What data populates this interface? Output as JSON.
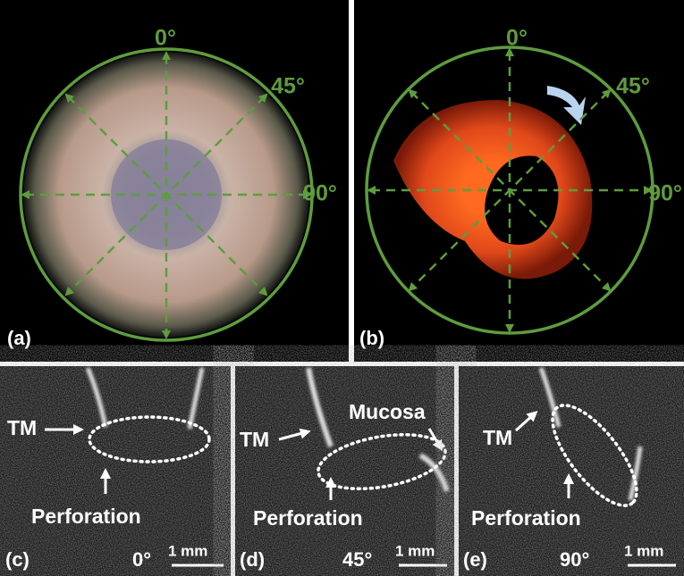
{
  "panels": [
    {
      "label": "(a)",
      "angles": [
        "0°",
        "45°",
        "90°"
      ]
    },
    {
      "label": "(b)",
      "angles": [
        "0°",
        "45°",
        "90°"
      ]
    },
    {
      "label": "(c)",
      "angle": "0°",
      "scale": "1 mm",
      "annotations": [
        "TM",
        "Perforation"
      ]
    },
    {
      "label": "(d)",
      "angle": "45°",
      "scale": "1 mm",
      "annotations": [
        "TM",
        "Mucosa",
        "Perforation"
      ]
    },
    {
      "label": "(e)",
      "angle": "90°",
      "scale": "1 mm",
      "annotations": [
        "TM",
        "Perforation"
      ]
    }
  ]
}
